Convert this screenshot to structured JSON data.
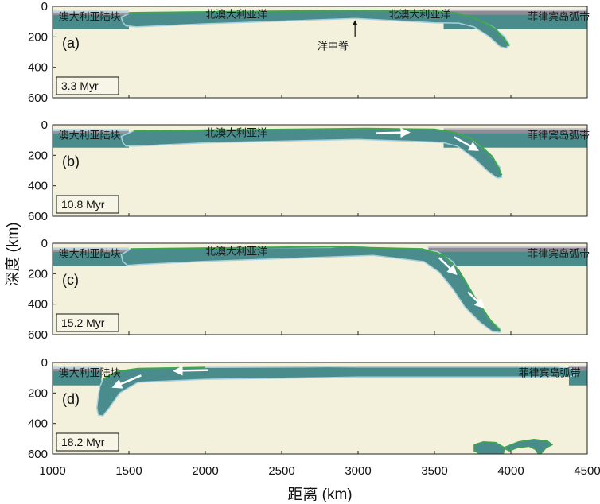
{
  "chart_data": {
    "type": "geodynamic-model-snapshots",
    "xlabel": "距离 (km)",
    "ylabel": "深度 (km)",
    "xlim": [
      1000,
      4500
    ],
    "ylim": [
      0,
      600
    ],
    "x_ticks": [
      1000,
      1500,
      2000,
      2500,
      3000,
      3500,
      4000,
      4500
    ],
    "y_ticks": [
      0,
      200,
      400,
      600
    ],
    "colors": {
      "mantle": "#f3f1db",
      "oceanic_plate": "#4a8c8c",
      "arc_crust": "#8f8c95",
      "sediment": "#3da64a",
      "weak_zone": "#a8d0e0",
      "arrow": "#ffffff"
    },
    "panels": [
      {
        "label": "(a)",
        "age": "3.3 Myr",
        "annotations": [
          {
            "text": "澳大利亚陆块",
            "x": 1040,
            "y": 70
          },
          {
            "text": "北澳大利亚洋",
            "x": 2000,
            "y": 55
          },
          {
            "text": "北澳大利亚洋",
            "x": 3200,
            "y": 55
          },
          {
            "text": "菲律宾岛弧带",
            "x": 4110,
            "y": 70
          },
          {
            "text": "洋中脊",
            "x": 2880,
            "y": 210,
            "arrow_to": {
              "x": 2980,
              "y": 55
            }
          }
        ],
        "arrows": [],
        "plates": [
          {
            "name": "south-plate-base",
            "top": [
              [
                1450,
                55
              ],
              [
                1500,
                42
              ],
              [
                3000,
                27
              ],
              [
                3500,
                30
              ],
              [
                3650,
                40
              ],
              [
                3800,
                75
              ],
              [
                3950,
                160
              ],
              [
                4000,
                240
              ],
              [
                3990,
                280
              ],
              [
                3950,
                270
              ],
              [
                3880,
                195
              ],
              [
                3780,
                120
              ],
              [
                3700,
                95
              ],
              [
                3600,
                75
              ],
              [
                3000,
                68
              ],
              [
                1520,
                130
              ],
              [
                1470,
                110
              ]
            ]
          }
        ]
      },
      {
        "label": "(b)",
        "age": "10.8 Myr",
        "annotations": [
          {
            "text": "澳大利亚陆块",
            "x": 1040,
            "y": 70
          },
          {
            "text": "北澳大利亚洋",
            "x": 2000,
            "y": 55
          },
          {
            "text": "菲律宾岛弧带",
            "x": 4110,
            "y": 70
          }
        ],
        "arrows": [
          {
            "from": [
              3120,
              55
            ],
            "to": [
              3330,
              50
            ]
          },
          {
            "from": [
              3630,
              80
            ],
            "to": [
              3780,
              165
            ]
          }
        ]
      },
      {
        "label": "(c)",
        "age": "15.2 Myr",
        "annotations": [
          {
            "text": "澳大利亚陆块",
            "x": 1040,
            "y": 70
          },
          {
            "text": "北澳大利亚洋",
            "x": 2000,
            "y": 55
          },
          {
            "text": "菲律宾岛弧带",
            "x": 4110,
            "y": 70
          }
        ],
        "arrows": [
          {
            "from": [
              3530,
              95
            ],
            "to": [
              3640,
              200
            ]
          },
          {
            "from": [
              3720,
              320
            ],
            "to": [
              3820,
              420
            ]
          }
        ]
      },
      {
        "label": "(d)",
        "age": "18.2 Myr",
        "annotations": [
          {
            "text": "澳大利亚陆块",
            "x": 1040,
            "y": 70
          },
          {
            "text": "菲律宾岛弧带",
            "x": 4050,
            "y": 70
          }
        ],
        "arrows": [
          {
            "from": [
              2020,
              50
            ],
            "to": [
              1800,
              55
            ]
          },
          {
            "from": [
              1580,
              85
            ],
            "to": [
              1400,
              160
            ]
          }
        ]
      }
    ]
  }
}
